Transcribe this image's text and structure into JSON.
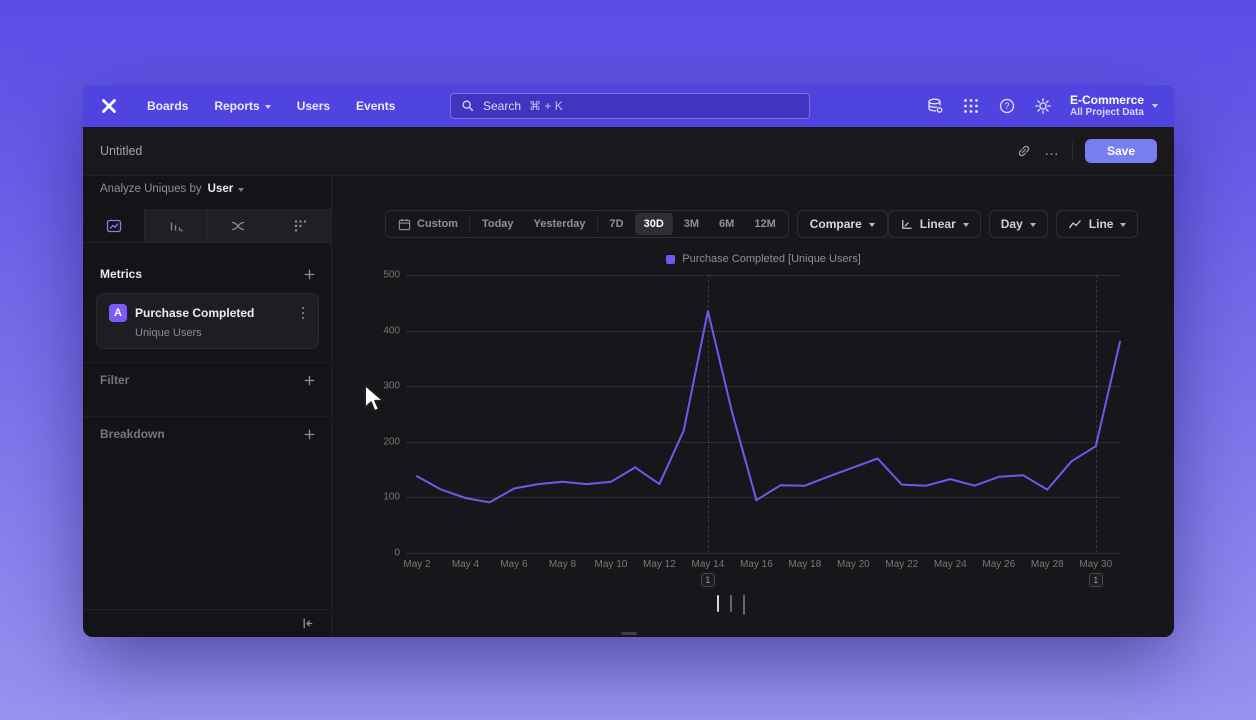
{
  "colors": {
    "accent_line": "#6d59ee",
    "nav_bar": "#4f44e0",
    "save_button": "#787df0",
    "window_bg": "#17171b",
    "selected_tab_icon": "#8d7bf2"
  },
  "topnav": {
    "items": [
      {
        "label": "Boards",
        "chevron": false
      },
      {
        "label": "Reports",
        "chevron": true
      },
      {
        "label": "Users",
        "chevron": false
      },
      {
        "label": "Events",
        "chevron": false
      }
    ],
    "search": {
      "label": "Search",
      "shortcut": "⌘ + K"
    },
    "icons": [
      "data-management-icon",
      "apps-grid-icon",
      "help-icon",
      "settings-gear-icon"
    ],
    "project": {
      "name": "E-Commerce",
      "scope": "All Project Data"
    }
  },
  "header": {
    "title": "Untitled",
    "more_label": "…",
    "save_label": "Save"
  },
  "sidebar": {
    "analyze": {
      "prefix": "Analyze Uniques by",
      "value": "User"
    },
    "tabs": [
      {
        "name": "insights",
        "selected": true
      },
      {
        "name": "funnels",
        "selected": false
      },
      {
        "name": "flows",
        "selected": false
      },
      {
        "name": "retention",
        "selected": false
      }
    ],
    "sections": [
      {
        "label": "Metrics"
      },
      {
        "label": "Filter"
      },
      {
        "label": "Breakdown"
      }
    ],
    "metric": {
      "badge": "A",
      "name": "Purchase Completed",
      "subtitle": "Unique Users"
    }
  },
  "toolbar": {
    "ranges": [
      "Custom",
      "Today",
      "Yesterday",
      "7D",
      "30D",
      "3M",
      "6M",
      "12M"
    ],
    "selected_range": "30D",
    "compare_label": "Compare",
    "view_controls": [
      {
        "label": "Linear",
        "icon": "axis"
      },
      {
        "label": "Day",
        "icon": null
      },
      {
        "label": "Line",
        "icon": "linechart"
      }
    ]
  },
  "chart_data": {
    "type": "line",
    "title": "",
    "legend": [
      {
        "label": "Purchase Completed [Unique Users]",
        "color": "#6d59ee"
      }
    ],
    "legend_position": "top-center",
    "x": [
      "May 2",
      "May 3",
      "May 4",
      "May 5",
      "May 6",
      "May 7",
      "May 8",
      "May 9",
      "May 10",
      "May 11",
      "May 12",
      "May 13",
      "May 14",
      "May 15",
      "May 16",
      "May 17",
      "May 18",
      "May 19",
      "May 20",
      "May 21",
      "May 22",
      "May 23",
      "May 24",
      "May 25",
      "May 26",
      "May 27",
      "May 28",
      "May 29",
      "May 30",
      "May 31"
    ],
    "values": [
      138,
      114,
      99,
      91,
      116,
      124,
      128,
      124,
      128,
      154,
      124,
      220,
      435,
      253,
      95,
      122,
      121,
      138,
      154,
      170,
      123,
      121,
      133,
      121,
      137,
      140,
      114,
      165,
      192,
      380
    ],
    "ylim": [
      0,
      500
    ],
    "y_ticks": [
      0,
      100,
      200,
      300,
      400,
      500
    ],
    "x_tick_every": 2,
    "grid": "horizontal-dotted",
    "annotations": [
      {
        "label": "1",
        "x": "May 14"
      },
      {
        "label": "1",
        "x": "May 30"
      }
    ]
  },
  "footer": {
    "view_toggles": [
      "chart-and-table",
      "chart-panel",
      "table-only"
    ]
  }
}
